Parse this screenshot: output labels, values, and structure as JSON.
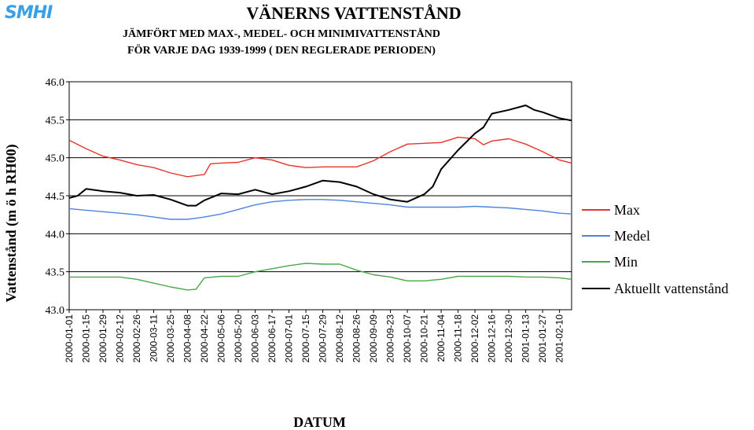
{
  "logo": "SMHI",
  "chart_data": {
    "type": "line",
    "title": "VÄNERNS VATTENSTÅND",
    "subtitle": [
      "JÄMFÖRT MED MAX-, MEDEL- OCH MINIMIVATTENSTÅND",
      "FÖR VARJE DAG 1939-1999 ( DEN REGLERADE PERIODEN)"
    ],
    "xlabel": "DATUM",
    "ylabel": "Vattenstånd (m ö h RH00)",
    "ylim": [
      43.0,
      46.0
    ],
    "yticks": [
      "43.0",
      "43.5",
      "44.0",
      "44.5",
      "45.0",
      "45.5",
      "46.0"
    ],
    "grid": "horizontal",
    "legend_position": "right",
    "x_range": [
      "2000-01-01",
      "2001-02-20"
    ],
    "xticks": [
      "2000-01-01",
      "2000-01-15",
      "2000-01-29",
      "2000-02-12",
      "2000-02-26",
      "2000-03-11",
      "2000-03-25",
      "2000-04-08",
      "2000-04-22",
      "2000-05-06",
      "2000-05-20",
      "2000-06-03",
      "2000-06-17",
      "2000-07-01",
      "2000-07-15",
      "2000-07-29",
      "2000-08-12",
      "2000-08-26",
      "2000-09-09",
      "2000-09-23",
      "2000-10-07",
      "2000-10-21",
      "2000-11-04",
      "2000-11-18",
      "2000-12-02",
      "2000-12-16",
      "2000-12-30",
      "2001-01-13",
      "2001-01-27",
      "2001-02-10"
    ],
    "series": [
      {
        "name": "Max",
        "color": "#e8342c",
        "points": [
          [
            "2000-01-01",
            45.23
          ],
          [
            "2000-01-15",
            45.12
          ],
          [
            "2000-01-29",
            45.02
          ],
          [
            "2000-02-12",
            44.97
          ],
          [
            "2000-02-26",
            44.91
          ],
          [
            "2000-03-11",
            44.87
          ],
          [
            "2000-03-25",
            44.8
          ],
          [
            "2000-04-08",
            44.75
          ],
          [
            "2000-04-22",
            44.78
          ],
          [
            "2000-04-27",
            44.92
          ],
          [
            "2000-05-06",
            44.93
          ],
          [
            "2000-05-20",
            44.94
          ],
          [
            "2000-06-03",
            45.0
          ],
          [
            "2000-06-17",
            44.97
          ],
          [
            "2000-07-01",
            44.9
          ],
          [
            "2000-07-15",
            44.87
          ],
          [
            "2000-07-29",
            44.88
          ],
          [
            "2000-08-12",
            44.88
          ],
          [
            "2000-08-26",
            44.88
          ],
          [
            "2000-09-09",
            44.96
          ],
          [
            "2000-09-23",
            45.08
          ],
          [
            "2000-10-07",
            45.18
          ],
          [
            "2000-10-21",
            45.19
          ],
          [
            "2000-11-04",
            45.2
          ],
          [
            "2000-11-18",
            45.27
          ],
          [
            "2000-12-02",
            45.25
          ],
          [
            "2000-12-09",
            45.17
          ],
          [
            "2000-12-16",
            45.22
          ],
          [
            "2000-12-30",
            45.25
          ],
          [
            "2001-01-13",
            45.18
          ],
          [
            "2001-01-27",
            45.08
          ],
          [
            "2001-02-10",
            44.97
          ],
          [
            "2001-02-20",
            44.93
          ]
        ]
      },
      {
        "name": "Medel",
        "color": "#4d84e0",
        "points": [
          [
            "2000-01-01",
            44.33
          ],
          [
            "2000-01-15",
            44.31
          ],
          [
            "2000-01-29",
            44.29
          ],
          [
            "2000-02-12",
            44.27
          ],
          [
            "2000-02-26",
            44.25
          ],
          [
            "2000-03-11",
            44.22
          ],
          [
            "2000-03-25",
            44.19
          ],
          [
            "2000-04-08",
            44.19
          ],
          [
            "2000-04-22",
            44.22
          ],
          [
            "2000-05-06",
            44.26
          ],
          [
            "2000-05-20",
            44.32
          ],
          [
            "2000-06-03",
            44.38
          ],
          [
            "2000-06-17",
            44.42
          ],
          [
            "2000-07-01",
            44.44
          ],
          [
            "2000-07-15",
            44.45
          ],
          [
            "2000-07-29",
            44.45
          ],
          [
            "2000-08-12",
            44.44
          ],
          [
            "2000-08-26",
            44.42
          ],
          [
            "2000-09-09",
            44.4
          ],
          [
            "2000-09-23",
            44.38
          ],
          [
            "2000-10-07",
            44.35
          ],
          [
            "2000-10-21",
            44.35
          ],
          [
            "2000-11-04",
            44.35
          ],
          [
            "2000-11-18",
            44.35
          ],
          [
            "2000-12-02",
            44.36
          ],
          [
            "2000-12-16",
            44.35
          ],
          [
            "2000-12-30",
            44.34
          ],
          [
            "2001-01-13",
            44.32
          ],
          [
            "2001-01-27",
            44.3
          ],
          [
            "2001-02-10",
            44.27
          ],
          [
            "2001-02-20",
            44.26
          ]
        ]
      },
      {
        "name": "Min",
        "color": "#4aa84a",
        "points": [
          [
            "2000-01-01",
            43.43
          ],
          [
            "2000-01-15",
            43.43
          ],
          [
            "2000-01-29",
            43.43
          ],
          [
            "2000-02-12",
            43.43
          ],
          [
            "2000-02-26",
            43.4
          ],
          [
            "2000-03-11",
            43.35
          ],
          [
            "2000-03-25",
            43.3
          ],
          [
            "2000-04-08",
            43.26
          ],
          [
            "2000-04-15",
            43.27
          ],
          [
            "2000-04-22",
            43.42
          ],
          [
            "2000-05-06",
            43.44
          ],
          [
            "2000-05-20",
            43.44
          ],
          [
            "2000-06-03",
            43.5
          ],
          [
            "2000-06-17",
            43.54
          ],
          [
            "2000-07-01",
            43.58
          ],
          [
            "2000-07-15",
            43.61
          ],
          [
            "2000-07-29",
            43.6
          ],
          [
            "2000-08-12",
            43.6
          ],
          [
            "2000-08-26",
            43.52
          ],
          [
            "2000-09-09",
            43.46
          ],
          [
            "2000-09-23",
            43.43
          ],
          [
            "2000-10-07",
            43.38
          ],
          [
            "2000-10-21",
            43.38
          ],
          [
            "2000-11-04",
            43.4
          ],
          [
            "2000-11-18",
            43.44
          ],
          [
            "2000-12-02",
            43.44
          ],
          [
            "2000-12-16",
            43.44
          ],
          [
            "2000-12-30",
            43.44
          ],
          [
            "2001-01-13",
            43.43
          ],
          [
            "2001-01-27",
            43.43
          ],
          [
            "2001-02-10",
            43.42
          ],
          [
            "2001-02-20",
            43.4
          ]
        ]
      },
      {
        "name": "Aktuellt vattenstånd",
        "color": "#000000",
        "points": [
          [
            "2000-01-01",
            44.47
          ],
          [
            "2000-01-08",
            44.5
          ],
          [
            "2000-01-15",
            44.59
          ],
          [
            "2000-01-29",
            44.56
          ],
          [
            "2000-02-12",
            44.54
          ],
          [
            "2000-02-26",
            44.5
          ],
          [
            "2000-03-11",
            44.51
          ],
          [
            "2000-03-25",
            44.45
          ],
          [
            "2000-04-08",
            44.37
          ],
          [
            "2000-04-15",
            44.37
          ],
          [
            "2000-04-22",
            44.44
          ],
          [
            "2000-05-06",
            44.53
          ],
          [
            "2000-05-20",
            44.52
          ],
          [
            "2000-06-03",
            44.58
          ],
          [
            "2000-06-17",
            44.52
          ],
          [
            "2000-07-01",
            44.56
          ],
          [
            "2000-07-15",
            44.62
          ],
          [
            "2000-07-29",
            44.7
          ],
          [
            "2000-08-12",
            44.68
          ],
          [
            "2000-08-26",
            44.62
          ],
          [
            "2000-09-09",
            44.52
          ],
          [
            "2000-09-23",
            44.45
          ],
          [
            "2000-10-07",
            44.42
          ],
          [
            "2000-10-21",
            44.52
          ],
          [
            "2000-10-28",
            44.62
          ],
          [
            "2000-11-04",
            44.85
          ],
          [
            "2000-11-18",
            45.1
          ],
          [
            "2000-12-02",
            45.32
          ],
          [
            "2000-12-09",
            45.4
          ],
          [
            "2000-12-16",
            45.58
          ],
          [
            "2000-12-30",
            45.63
          ],
          [
            "2001-01-13",
            45.69
          ],
          [
            "2001-01-20",
            45.63
          ],
          [
            "2001-01-27",
            45.6
          ],
          [
            "2001-02-10",
            45.52
          ],
          [
            "2001-02-20",
            45.49
          ]
        ]
      }
    ]
  }
}
